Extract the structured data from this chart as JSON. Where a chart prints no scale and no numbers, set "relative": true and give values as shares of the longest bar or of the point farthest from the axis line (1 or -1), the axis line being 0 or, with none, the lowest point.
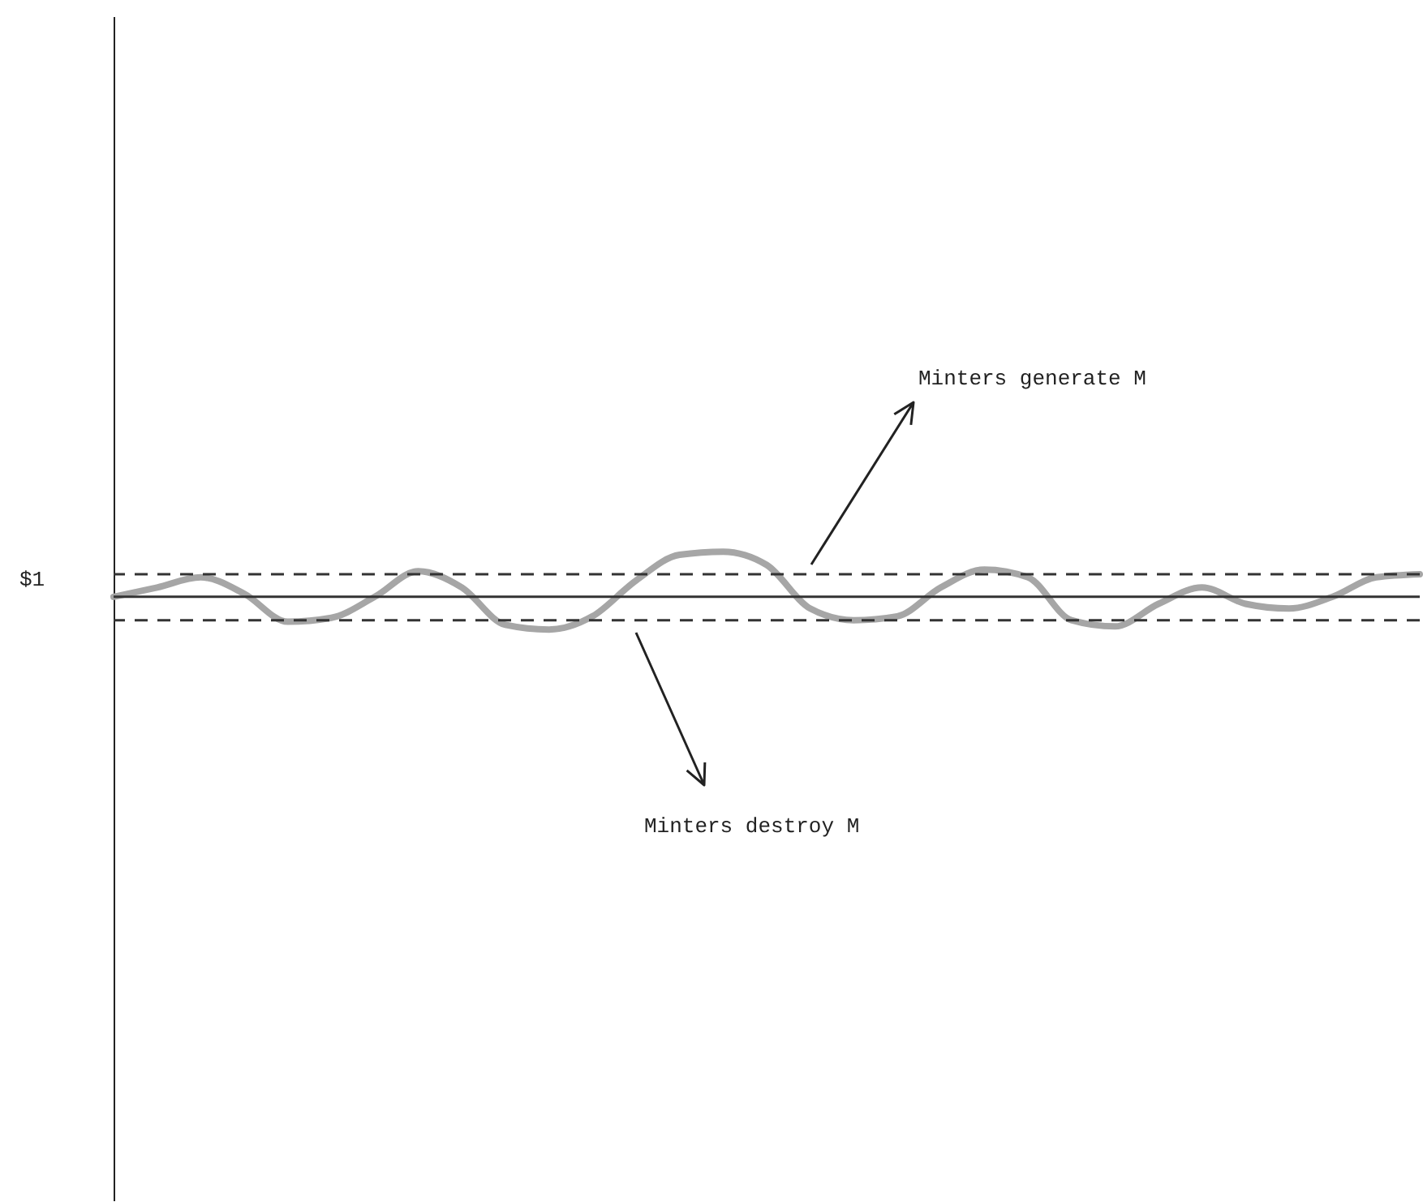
{
  "chart_data": {
    "type": "line",
    "relative": true,
    "categories": [
      null,
      null,
      null,
      null,
      null,
      null,
      null,
      null,
      null,
      null,
      null,
      null,
      null,
      null,
      null,
      null,
      null,
      null,
      null,
      null,
      null,
      null,
      null,
      null,
      null,
      null,
      null,
      null,
      null,
      null,
      null
    ],
    "series": [
      {
        "color": "#a6a6a6",
        "values": [
          0.42,
          0.54,
          0.67,
          0.46,
          0.1,
          0.15,
          0.42,
          0.75,
          0.54,
          0.06,
          0,
          0.17,
          0.63,
          0.96,
          1,
          0.83,
          0.27,
          0.12,
          0.17,
          0.54,
          0.77,
          0.67,
          0.12,
          0.04,
          0.33,
          0.54,
          0.33,
          0.27,
          0.42,
          0.67,
          0.71
        ]
      }
    ],
    "ref_lines": [
      {
        "axis": "y",
        "value": 0.42,
        "label": null,
        "color": "#333333",
        "line_style": "solid"
      },
      {
        "axis": "y",
        "value": 0.71,
        "label": null,
        "color": "#333333",
        "line_style": "dashed"
      },
      {
        "axis": "y",
        "value": 0.12,
        "label": null,
        "color": "#333333",
        "line_style": "dashed"
      }
    ],
    "annotations": [
      "$1",
      "Minters generate M",
      "Minters destroy M"
    ],
    "marker": "none",
    "line_style": "solid"
  }
}
